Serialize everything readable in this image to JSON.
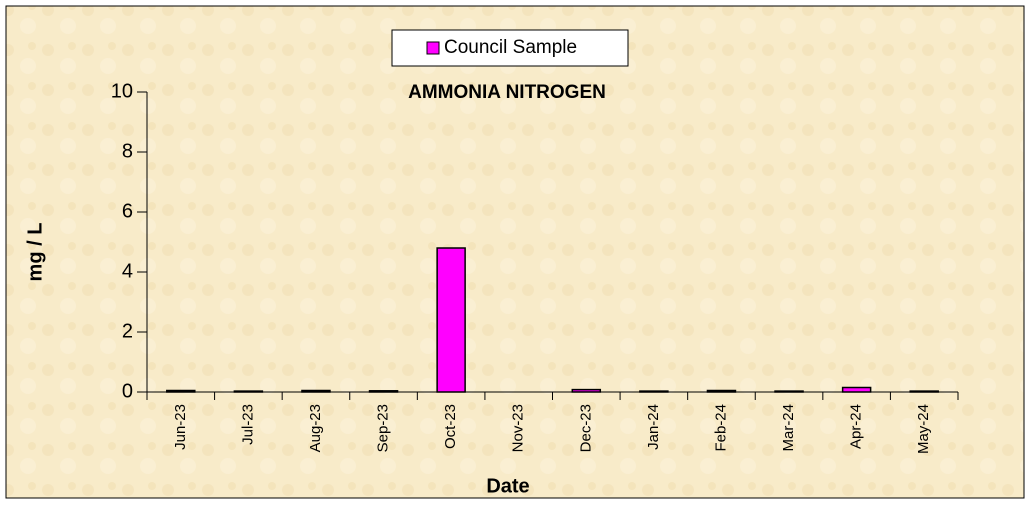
{
  "chart_data": {
    "type": "bar",
    "title": "AMMONIA NITROGEN",
    "x_label": "Date",
    "y_label": "mg / L",
    "categories": [
      "Jun-23",
      "Jul-23",
      "Aug-23",
      "Sep-23",
      "Oct-23",
      "Nov-23",
      "Dec-23",
      "Jan-24",
      "Feb-24",
      "Mar-24",
      "Apr-24",
      "May-24"
    ],
    "series": [
      {
        "name": "Council Sample",
        "color": "#ff00ff",
        "values": [
          0.05,
          0.03,
          0.05,
          0.04,
          4.8,
          null,
          0.08,
          0.03,
          0.05,
          0.03,
          0.15,
          0.03
        ]
      }
    ],
    "ylim": [
      0,
      10
    ],
    "yticks": [
      0,
      2,
      4,
      6,
      8,
      10
    ],
    "grid": false,
    "legend": "top"
  }
}
